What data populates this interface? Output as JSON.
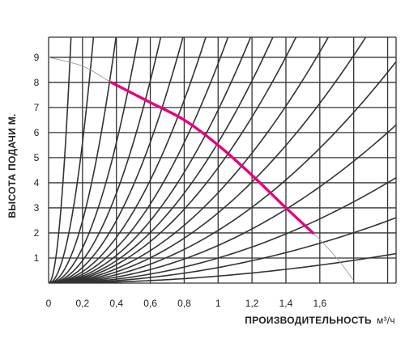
{
  "chart_data": {
    "type": "line",
    "title": "",
    "xlabel": "ПРОИЗВОДИТЕЛЬНОСТЬ",
    "xunit": "м³/ч",
    "ylabel": "ВЫСОТА ПОДАЧИ М.",
    "xlim": [
      0,
      2.05
    ],
    "ylim": [
      0,
      9.8
    ],
    "x_ticks": [
      "0",
      "0,2",
      "0,4",
      "0,6",
      "0,8",
      "1",
      "1,2",
      "1,4",
      "1,6"
    ],
    "y_ticks": [
      "1",
      "2",
      "3",
      "4",
      "5",
      "6",
      "7",
      "8",
      "9"
    ],
    "grid": true,
    "series": [
      {
        "role": "pump-curve-full",
        "color": "#999999",
        "points": [
          [
            0,
            9
          ],
          [
            0.2,
            8.65
          ],
          [
            0.37,
            8.0
          ],
          [
            0.6,
            7.2
          ],
          [
            0.8,
            6.5
          ],
          [
            1.0,
            5.5
          ],
          [
            1.2,
            4.3
          ],
          [
            1.4,
            3.0
          ],
          [
            1.56,
            2.0
          ],
          [
            1.7,
            1.0
          ],
          [
            1.8,
            0.1
          ]
        ]
      },
      {
        "role": "pump-curve-working",
        "color": "#e6007e",
        "points": [
          [
            0.37,
            8.0
          ],
          [
            0.6,
            7.2
          ],
          [
            0.8,
            6.5
          ],
          [
            1.0,
            5.5
          ],
          [
            1.2,
            4.3
          ],
          [
            1.4,
            3.0
          ],
          [
            1.56,
            2.0
          ]
        ]
      }
    ],
    "system_curves_k": [
      560,
      140,
      62,
      35,
      22.4,
      15.6,
      11.4,
      8.75,
      6.9,
      5.6,
      4.6,
      3.6,
      2.8,
      2.1,
      1.5,
      1.0,
      0.62,
      0.28
    ]
  }
}
